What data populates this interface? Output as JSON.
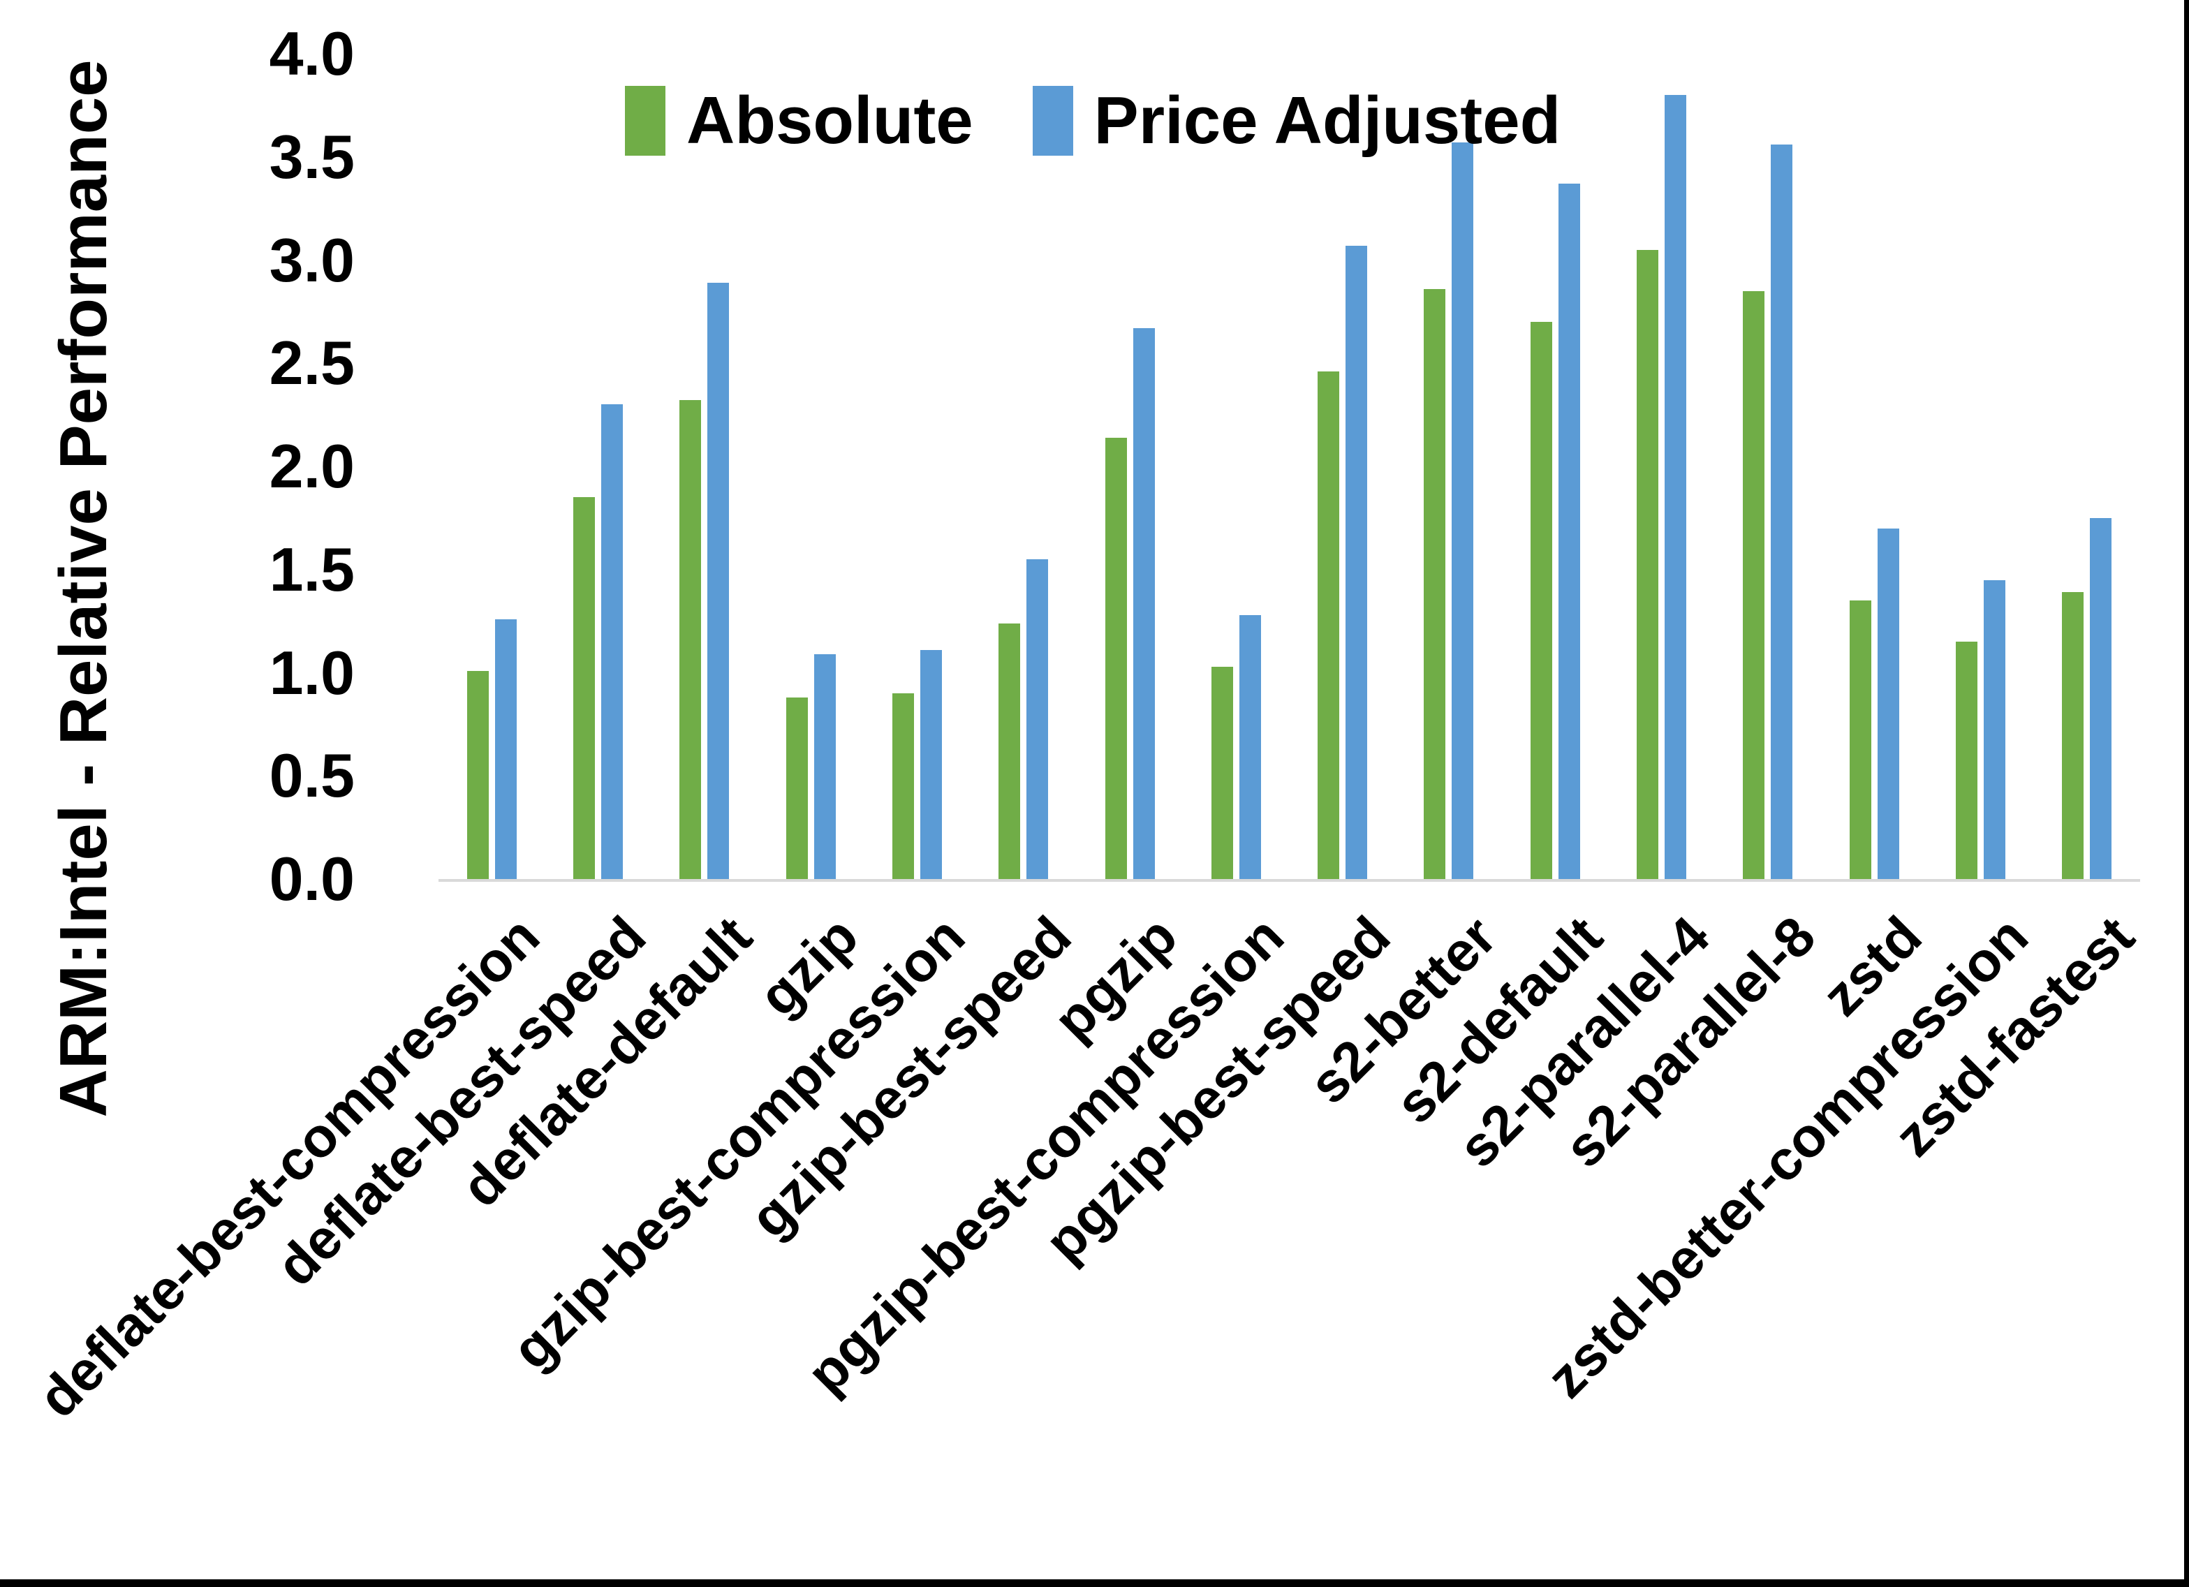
{
  "chart_data": {
    "type": "bar",
    "title": "",
    "ylabel": "ARM:Intel - Relative Performance",
    "xlabel": "",
    "ylim": [
      0.0,
      4.0
    ],
    "ytick_step": 0.5,
    "ytick_labels": [
      "0.0",
      "0.5",
      "1.0",
      "1.5",
      "2.0",
      "2.5",
      "3.0",
      "3.5",
      "4.0"
    ],
    "grid": false,
    "legend_position": "top",
    "axis_line_color": "#d9d9d9",
    "categories": [
      "deflate-best-compression",
      "deflate-best-speed",
      "deflate-default",
      "gzip",
      "gzip-best-compression",
      "gzip-best-speed",
      "pgzip",
      "pgzip-best-compression",
      "pgzip-best-speed",
      "s2-better",
      "s2-default",
      "s2-parallel-4",
      "s2-parallel-8",
      "zstd",
      "zstd-better-compression",
      "zstd-fastest"
    ],
    "series": [
      {
        "name": "Absolute",
        "color": "#70AD47",
        "values": [
          1.01,
          1.85,
          2.32,
          0.88,
          0.9,
          1.24,
          2.14,
          1.03,
          2.46,
          2.86,
          2.7,
          3.05,
          2.85,
          1.35,
          1.15,
          1.39
        ]
      },
      {
        "name": "Price Adjusted",
        "color": "#5B9BD5",
        "values": [
          1.26,
          2.3,
          2.89,
          1.09,
          1.11,
          1.55,
          2.67,
          1.28,
          3.07,
          3.57,
          3.37,
          3.8,
          3.56,
          1.7,
          1.45,
          1.75
        ]
      }
    ]
  }
}
